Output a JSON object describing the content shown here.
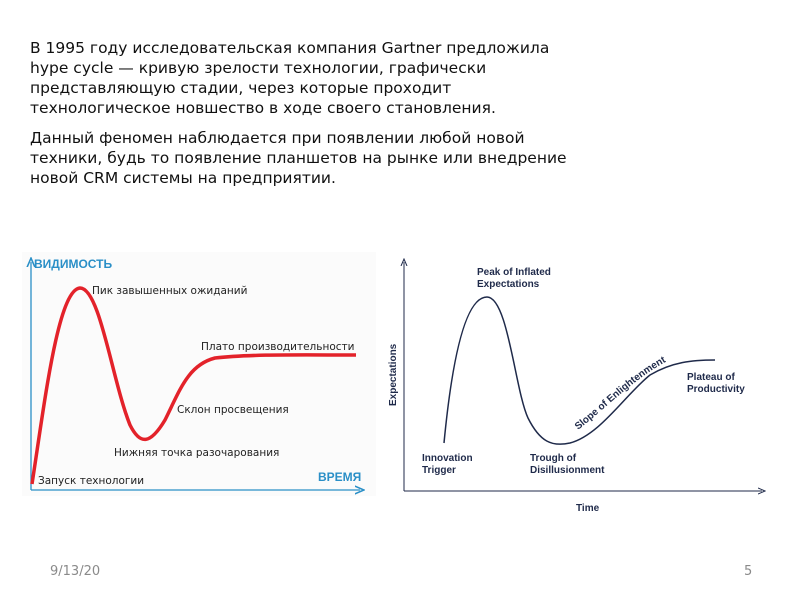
{
  "text": {
    "paragraph1": "В 1995 году исследовательская компания Gartner предложила hype cycle — кривую зрелости технологии, графически представляющую стадии, через которые проходит технологическое новшество в ходе своего становления.",
    "paragraph2": "Данный феномен наблюдается при появлении любой новой техники, будь то появление планшетов на рынке или внедрение новой CRM системы на предприятии."
  },
  "diagram_ru": {
    "y_axis": "ВИДИМОСТЬ",
    "x_axis": "ВРЕМЯ",
    "labels": {
      "peak": "Пик завышенных ожиданий",
      "plateau": "Плато производительности",
      "slope": "Склон просвещения",
      "trough": "Нижняя точка разочарования",
      "trigger": "Запуск технологии"
    },
    "curve_color": "#e3222a",
    "axis_color": "#2a8fc7"
  },
  "diagram_en": {
    "y_axis": "Expectations",
    "x_axis": "Time",
    "labels": {
      "peak_1": "Peak of Inflated",
      "peak_2": "Expectations",
      "trigger_1": "Innovation",
      "trigger_2": "Trigger",
      "trough_1": "Trough of",
      "trough_2": "Disillusionment",
      "slope": "Slope of Enlightenment",
      "plateau_1": "Plateau of",
      "plateau_2": "Productivity"
    },
    "curve_color": "#1f2a4a"
  },
  "footer": {
    "date": "9/13/20",
    "slide_number": "5"
  }
}
